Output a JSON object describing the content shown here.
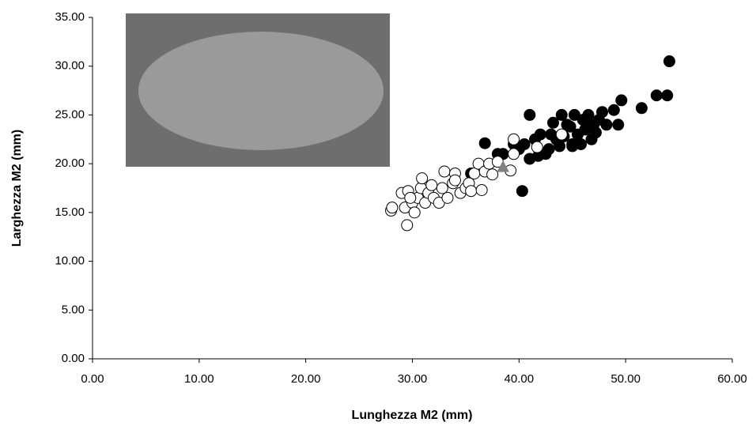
{
  "chart_data": {
    "type": "scatter",
    "xlabel": "Lunghezza M2 (mm)",
    "ylabel": "Larghezza M2 (mm)",
    "xlim": [
      0,
      60
    ],
    "ylim": [
      0,
      35
    ],
    "xticks": [
      {
        "value": 0,
        "label": "0.00"
      },
      {
        "value": 10,
        "label": "10.00"
      },
      {
        "value": 20,
        "label": "20.00"
      },
      {
        "value": 30,
        "label": "30.00"
      },
      {
        "value": 40,
        "label": "40.00"
      },
      {
        "value": 50,
        "label": "50.00"
      },
      {
        "value": 60,
        "label": "60.00"
      }
    ],
    "yticks": [
      {
        "value": 0,
        "label": "0.00"
      },
      {
        "value": 5,
        "label": "5.00"
      },
      {
        "value": 10,
        "label": "10.00"
      },
      {
        "value": 15,
        "label": "15.00"
      },
      {
        "value": 20,
        "label": "20.00"
      },
      {
        "value": 25,
        "label": "25.00"
      },
      {
        "value": 30,
        "label": "30.00"
      },
      {
        "value": 35,
        "label": "35.00"
      }
    ],
    "grid": false,
    "series": [
      {
        "color": "#000000",
        "edgecolor": "#000000",
        "marker": "circle",
        "x": [
          54.1,
          53.9,
          52.9,
          51.5,
          49.6,
          49.3,
          48.9,
          47.8,
          47.0,
          46.5,
          46.0,
          45.5,
          45.0,
          44.5,
          44.0,
          43.5,
          43.0,
          42.5,
          42.0,
          41.5,
          41.0,
          41.0,
          40.5,
          40.3,
          40.0,
          39.5,
          38.5,
          38.0,
          36.8,
          35.5,
          44.8,
          46.2,
          47.5,
          45.2,
          43.8,
          42.8,
          46.8,
          48.2,
          44.2,
          45.8,
          47.2,
          41.8,
          43.2,
          45.0,
          46.5
        ],
        "values": [
          30.5,
          27.0,
          27.0,
          25.7,
          26.5,
          24.0,
          25.5,
          25.3,
          24.0,
          25.0,
          24.5,
          23.0,
          22.0,
          24.0,
          25.0,
          22.5,
          23.0,
          21.0,
          23.0,
          22.5,
          25.0,
          20.5,
          22.0,
          17.2,
          21.5,
          22.0,
          21.0,
          21.0,
          22.1,
          19.0,
          23.8,
          23.5,
          24.5,
          25.0,
          21.8,
          21.5,
          22.5,
          24.0,
          22.8,
          22.0,
          23.2,
          20.8,
          24.2,
          21.8,
          24.0
        ]
      },
      {
        "color": "#ffffff",
        "edgecolor": "#000000",
        "marker": "circle",
        "x": [
          28.0,
          28.1,
          29.0,
          29.3,
          29.5,
          29.6,
          30.0,
          30.2,
          30.5,
          30.8,
          30.9,
          31.2,
          31.5,
          32.0,
          32.5,
          32.8,
          33.0,
          33.3,
          33.8,
          34.0,
          34.5,
          35.0,
          35.3,
          35.5,
          35.8,
          36.2,
          36.5,
          36.8,
          37.2,
          37.5,
          38.0,
          39.2,
          39.5,
          39.5,
          41.7,
          44.0,
          34.0,
          31.8,
          29.8
        ],
        "values": [
          15.2,
          15.5,
          17.0,
          15.5,
          13.7,
          17.2,
          16.0,
          15.0,
          16.5,
          17.5,
          18.5,
          16.0,
          17.0,
          16.5,
          16.0,
          17.5,
          19.2,
          16.5,
          18.0,
          19.0,
          17.0,
          17.5,
          18.0,
          17.2,
          19.0,
          20.0,
          17.3,
          19.2,
          20.0,
          18.9,
          20.2,
          19.3,
          21.0,
          22.5,
          21.7,
          23.0,
          18.3,
          17.8,
          16.5
        ]
      },
      {
        "color": "#808080",
        "edgecolor": "#808080",
        "marker": "triangle",
        "x": [
          38.5
        ],
        "values": [
          19.6
        ]
      }
    ]
  }
}
